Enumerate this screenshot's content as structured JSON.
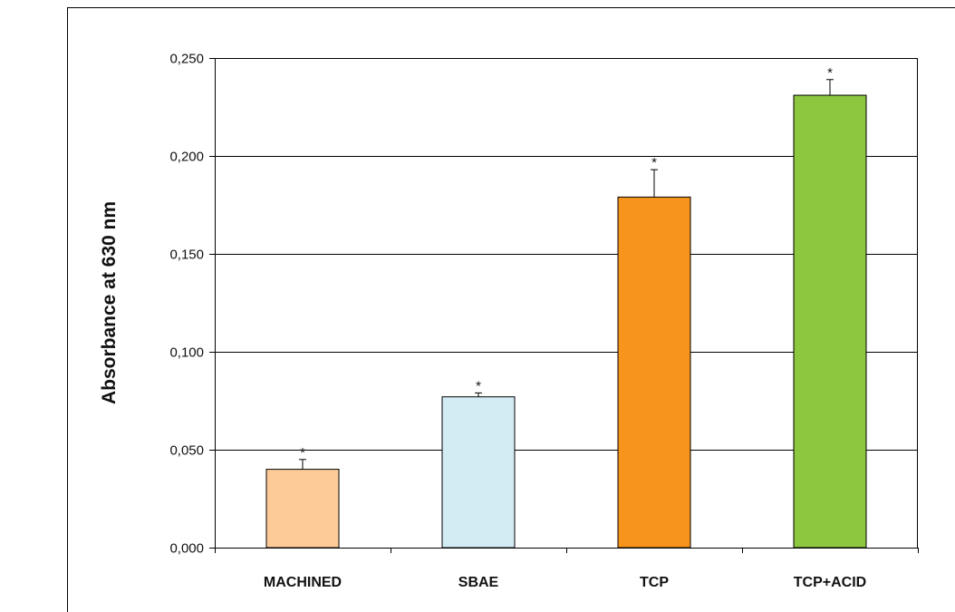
{
  "chart_data": {
    "type": "bar",
    "title": "",
    "xlabel": "",
    "ylabel": "Absorbance at  630 nm",
    "ylim": [
      0,
      0.25
    ],
    "yticks": [
      0.0,
      0.05,
      0.1,
      0.15,
      0.2,
      0.25
    ],
    "ytick_labels": [
      "0,000",
      "0,050",
      "0,100",
      "0,150",
      "0,200",
      "0,250"
    ],
    "grid": true,
    "legend": "none",
    "categories": [
      "MACHINED",
      "SBAE",
      "TCP",
      "TCP+ACID"
    ],
    "values": [
      0.04,
      0.077,
      0.179,
      0.231
    ],
    "errors": [
      0.005,
      0.002,
      0.014,
      0.008
    ],
    "annotations": [
      "*",
      "*",
      "*",
      "*"
    ],
    "colors": [
      "#FCCB97",
      "#D3ECF4",
      "#F7941D",
      "#8DC63F"
    ]
  }
}
